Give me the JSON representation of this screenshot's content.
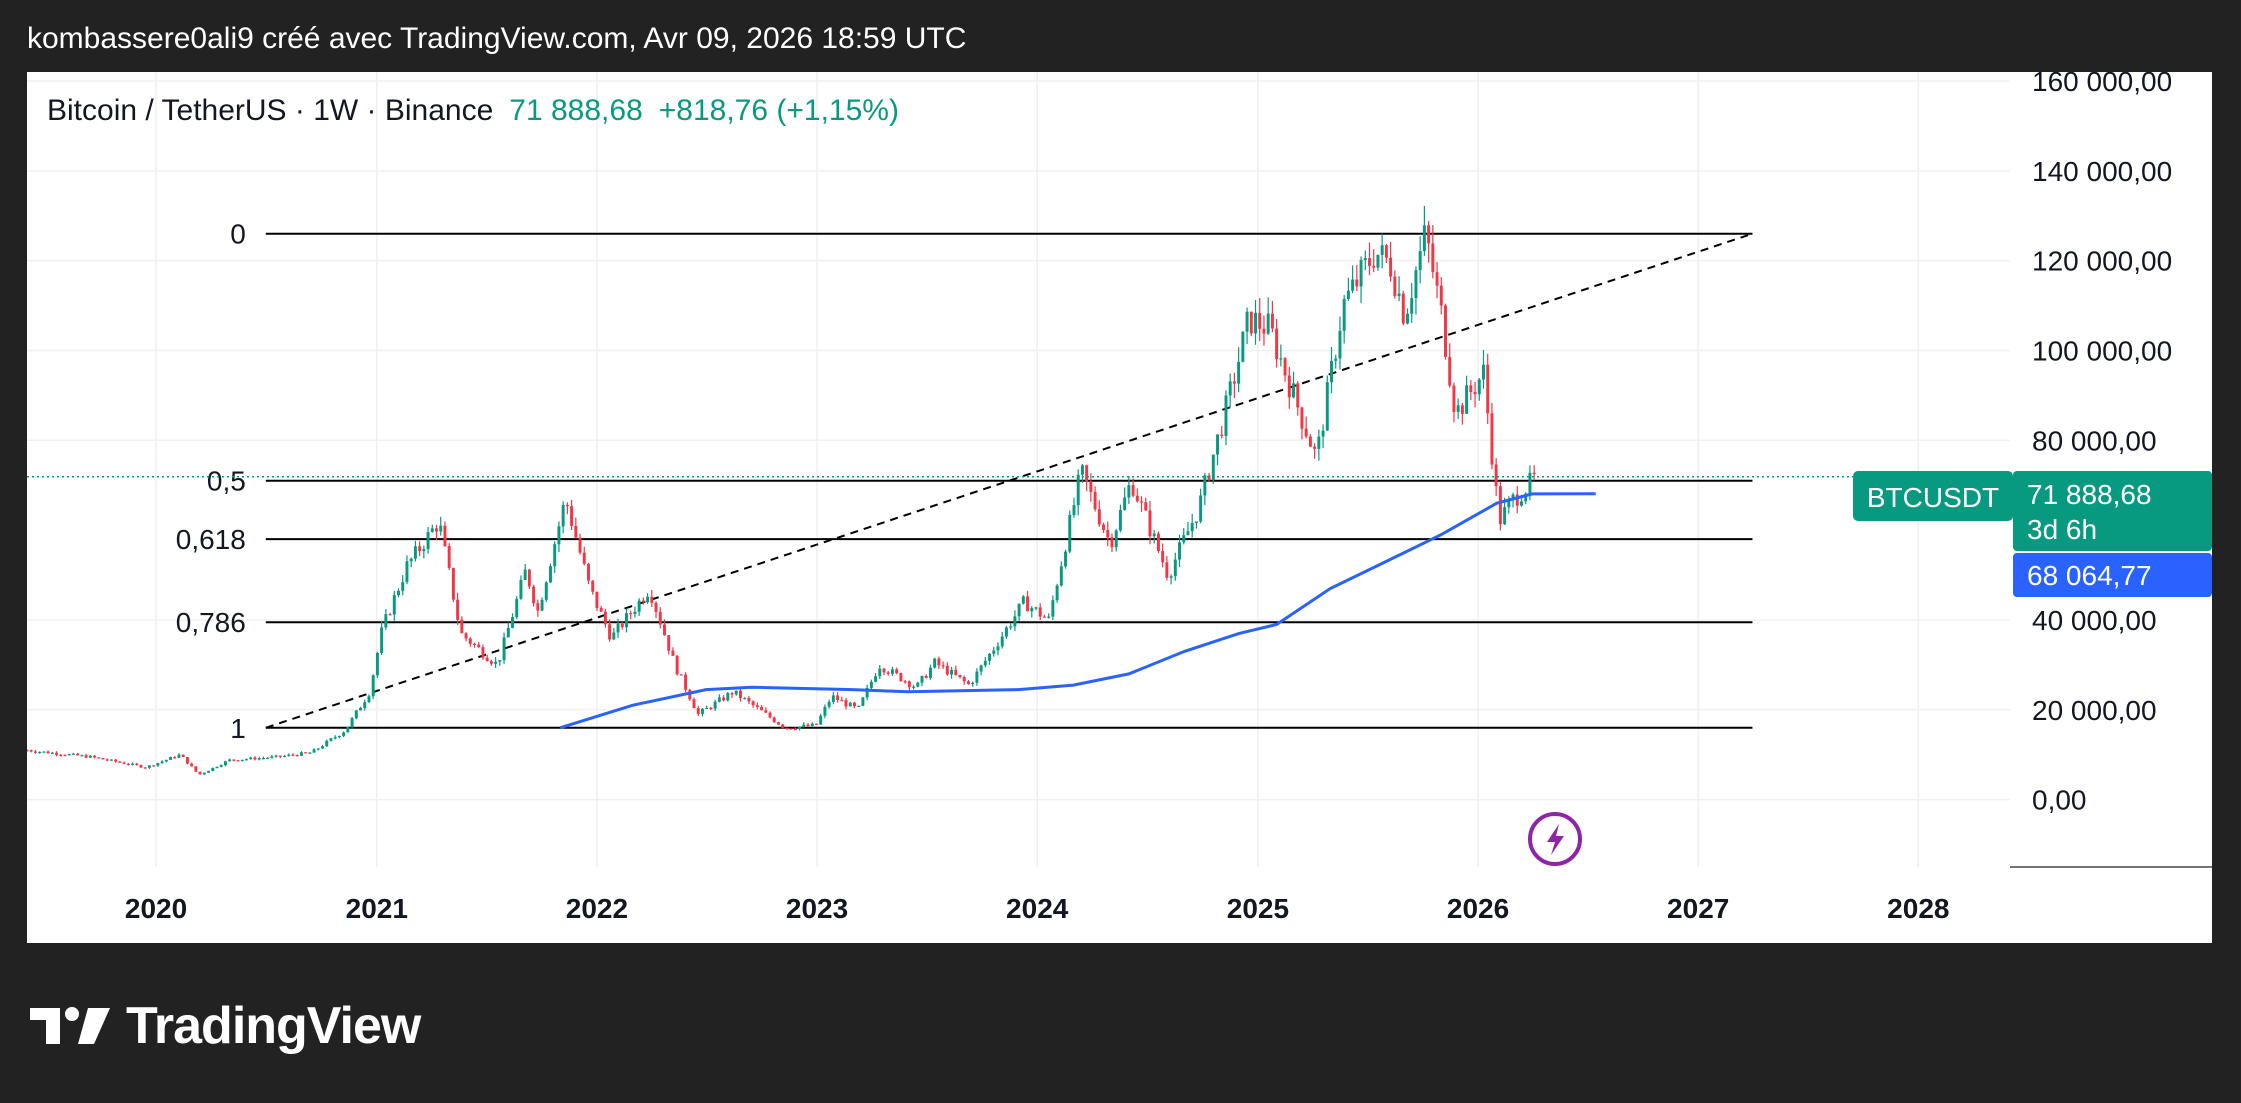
{
  "header": {
    "attribution": "kombassere0ali9 créé avec TradingView.com, Avr 09, 2026 18:59 UTC"
  },
  "legend": {
    "symbol": "Bitcoin / TetherUS · 1W · Binance",
    "price": "71 888,68",
    "change": "+818,76 (+1,15%)"
  },
  "badges": {
    "ticker": "BTCUSDT",
    "last_price": "71 888,68",
    "countdown": "3d 6h",
    "ma_value": "68 064,77"
  },
  "colors": {
    "up": "#089981",
    "down": "#f23645",
    "ma_line": "#2962ff",
    "fib_line": "#000000",
    "trend_line": "#000000",
    "flash_icon": "#8e24aa"
  },
  "icons": {
    "flash": "lightning-bolt-icon",
    "logo": "tradingview-logo-icon"
  },
  "footer": {
    "logo_text": "TradingView"
  },
  "chart_data": {
    "type": "candlestick",
    "interval": "1W",
    "ylim": [
      -15000,
      162000
    ],
    "xlim": [
      "2019-06-01",
      "2028-06-01"
    ],
    "y_tick_labels": [
      "160 000,00",
      "140 000,00",
      "120 000,00",
      "100 000,00",
      "80 000,00",
      "0,00",
      "20 000,00",
      "40 000,00"
    ],
    "y_ticks": [
      {
        "value": 160000,
        "label": "160 000,00"
      },
      {
        "value": 140000,
        "label": "140 000,00"
      },
      {
        "value": 120000,
        "label": "120 000,00"
      },
      {
        "value": 100000,
        "label": "100 000,00"
      },
      {
        "value": 80000,
        "label": "80 000,00"
      },
      {
        "value": 40000,
        "label": "40 000,00"
      },
      {
        "value": 20000,
        "label": "20 000,00"
      },
      {
        "value": 0,
        "label": "0,00"
      }
    ],
    "x_ticks": [
      {
        "date": "2020-01-01",
        "label": "2020"
      },
      {
        "date": "2021-01-01",
        "label": "2021"
      },
      {
        "date": "2022-01-01",
        "label": "2022"
      },
      {
        "date": "2023-01-01",
        "label": "2023"
      },
      {
        "date": "2024-01-01",
        "label": "2024"
      },
      {
        "date": "2025-01-01",
        "label": "2025"
      },
      {
        "date": "2026-01-01",
        "label": "2026"
      },
      {
        "date": "2027-01-01",
        "label": "2027"
      },
      {
        "date": "2028-01-01",
        "label": "2028"
      }
    ],
    "price_path": [
      [
        "2019-06-01",
        11000
      ],
      [
        "2019-09-15",
        9500
      ],
      [
        "2019-12-15",
        7200
      ],
      [
        "2020-02-10",
        10000
      ],
      [
        "2020-03-12",
        5500
      ],
      [
        "2020-05-01",
        8800
      ],
      [
        "2020-07-20",
        9500
      ],
      [
        "2020-09-15",
        10500
      ],
      [
        "2020-11-10",
        15500
      ],
      [
        "2020-12-20",
        24000
      ],
      [
        "2021-01-10",
        38000
      ],
      [
        "2021-02-20",
        52000
      ],
      [
        "2021-04-14",
        62000
      ],
      [
        "2021-05-20",
        37000
      ],
      [
        "2021-07-20",
        30000
      ],
      [
        "2021-09-05",
        51000
      ],
      [
        "2021-09-25",
        42000
      ],
      [
        "2021-11-10",
        67000
      ],
      [
        "2021-12-20",
        47000
      ],
      [
        "2022-01-25",
        36000
      ],
      [
        "2022-03-29",
        47000
      ],
      [
        "2022-05-10",
        30000
      ],
      [
        "2022-06-18",
        19000
      ],
      [
        "2022-08-15",
        24000
      ],
      [
        "2022-11-09",
        16000
      ],
      [
        "2022-12-30",
        16500
      ],
      [
        "2023-01-25",
        23000
      ],
      [
        "2023-03-10",
        20000
      ],
      [
        "2023-04-14",
        30000
      ],
      [
        "2023-06-15",
        25000
      ],
      [
        "2023-07-15",
        30500
      ],
      [
        "2023-09-10",
        25500
      ],
      [
        "2023-10-25",
        34500
      ],
      [
        "2023-12-10",
        44000
      ],
      [
        "2024-01-20",
        40000
      ],
      [
        "2024-03-14",
        73000
      ],
      [
        "2024-05-01",
        57000
      ],
      [
        "2024-06-05",
        71000
      ],
      [
        "2024-08-05",
        50000
      ],
      [
        "2024-09-25",
        65000
      ],
      [
        "2024-11-15",
        90000
      ],
      [
        "2024-12-17",
        107000
      ],
      [
        "2025-01-20",
        105000
      ],
      [
        "2025-04-08",
        76000
      ],
      [
        "2025-05-22",
        110000
      ],
      [
        "2025-07-14",
        122000
      ],
      [
        "2025-08-10",
        119000
      ],
      [
        "2025-09-01",
        108000
      ],
      [
        "2025-10-06",
        126000
      ],
      [
        "2025-11-01",
        108000
      ],
      [
        "2025-11-25",
        86000
      ],
      [
        "2026-01-10",
        95000
      ],
      [
        "2026-02-05",
        62000
      ],
      [
        "2026-03-01",
        67000
      ],
      [
        "2026-04-09",
        71888.68
      ]
    ],
    "ma_line": [
      [
        "2021-11-01",
        16000
      ],
      [
        "2022-03-01",
        21000
      ],
      [
        "2022-07-01",
        24500
      ],
      [
        "2022-09-15",
        25000
      ],
      [
        "2023-03-01",
        24500
      ],
      [
        "2023-06-01",
        24000
      ],
      [
        "2023-12-01",
        24500
      ],
      [
        "2024-03-01",
        25500
      ],
      [
        "2024-06-01",
        28000
      ],
      [
        "2024-09-01",
        33000
      ],
      [
        "2024-12-01",
        37000
      ],
      [
        "2025-02-01",
        39000
      ],
      [
        "2025-05-01",
        47000
      ],
      [
        "2025-08-01",
        53000
      ],
      [
        "2025-11-01",
        59000
      ],
      [
        "2026-02-01",
        66000
      ],
      [
        "2026-04-01",
        68064.77
      ],
      [
        "2026-07-15",
        68100
      ]
    ],
    "fib_levels": [
      {
        "label": "0",
        "value": 126000
      },
      {
        "label": "0,5",
        "value": 71000
      },
      {
        "label": "0,618",
        "value": 58000
      },
      {
        "label": "0,786",
        "value": 39500
      },
      {
        "label": "1",
        "value": 16000
      }
    ],
    "fib_x_range": [
      "2020-07-01",
      "2027-04-01"
    ],
    "trend_line": [
      [
        "2020-07-01",
        16000
      ],
      [
        "2027-04-01",
        126000
      ]
    ],
    "last_price": 71888.68,
    "ma_value": 68064.77
  }
}
